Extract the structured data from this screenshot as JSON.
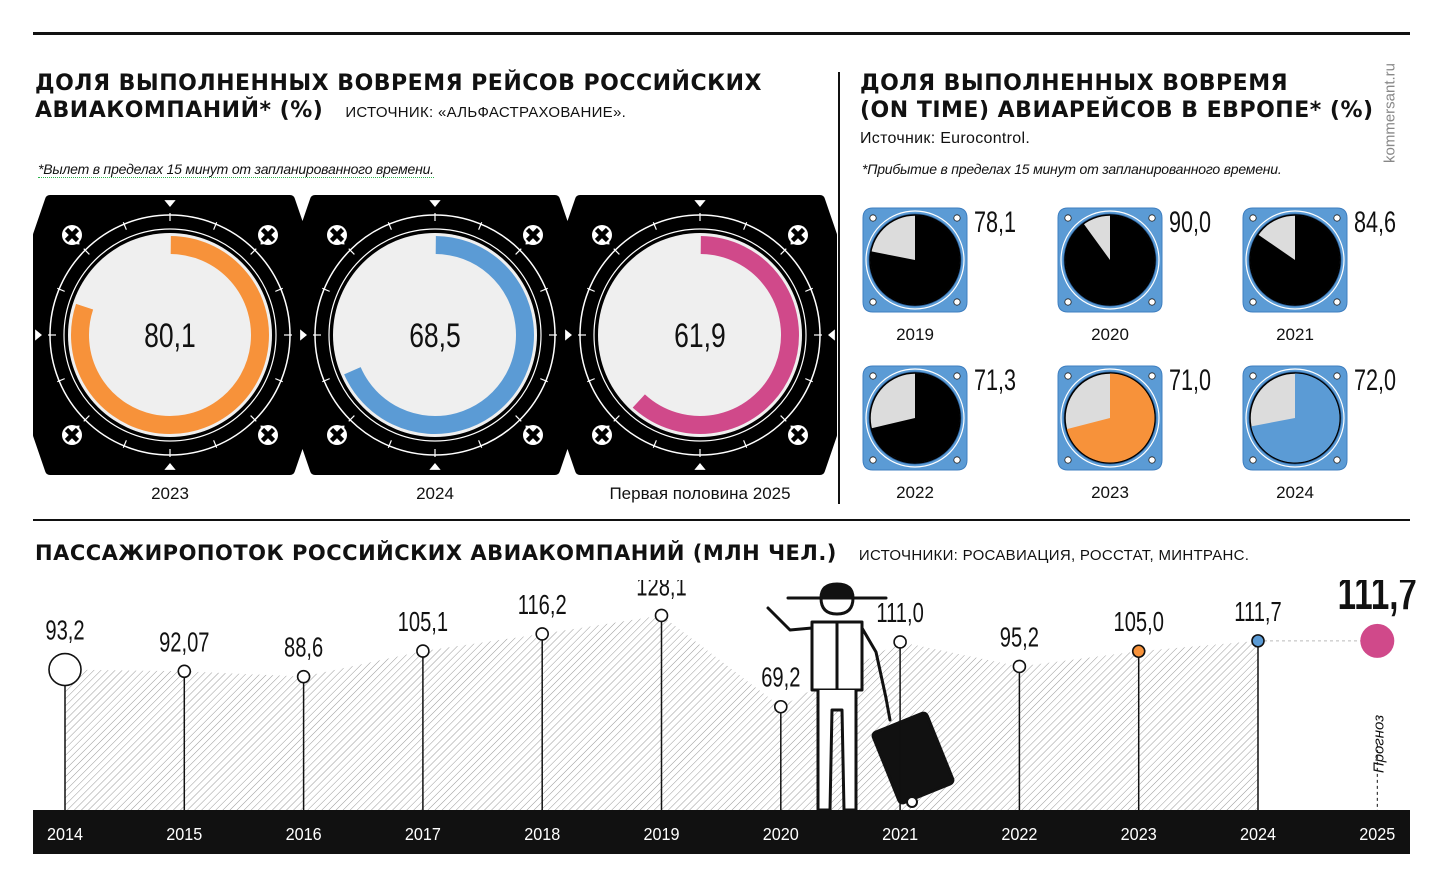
{
  "brand": "kommersant.ru",
  "russia": {
    "title_line1": "Доля выполненных вовремя рейсов российских",
    "title_line2": "авиакомпаний* (%)",
    "source": "Источник: «Альфастрахование».",
    "note": "*Вылет в пределах 15 минут от запланированного времени.",
    "gauges": [
      {
        "label": "2023",
        "value_text": "80,1",
        "value": 80.1,
        "color": "#f7923a"
      },
      {
        "label": "2024",
        "value_text": "68,5",
        "value": 68.5,
        "color": "#5b9bd5"
      },
      {
        "label": "Первая половина 2025",
        "value_text": "61,9",
        "value": 61.9,
        "color": "#d0498a"
      }
    ]
  },
  "europe": {
    "title_line1": "Доля выполненных вовремя",
    "title_line2": "(on time) авиарейсов в Европе* (%)",
    "source": "Источник: Eurocontrol.",
    "note": "*Прибытие в пределах 15 минут от запланированного времени.",
    "gauges": [
      {
        "label": "2019",
        "value_text": "78,1",
        "value": 78.1,
        "fill": "#000000"
      },
      {
        "label": "2020",
        "value_text": "90,0",
        "value": 90.0,
        "fill": "#000000"
      },
      {
        "label": "2021",
        "value_text": "84,6",
        "value": 84.6,
        "fill": "#000000"
      },
      {
        "label": "2022",
        "value_text": "71,3",
        "value": 71.3,
        "fill": "#000000"
      },
      {
        "label": "2023",
        "value_text": "71,0",
        "value": 71.0,
        "fill": "#f7923a"
      },
      {
        "label": "2024",
        "value_text": "72,0",
        "value": 72.0,
        "fill": "#5b9bd5"
      }
    ]
  },
  "passengers": {
    "title": "Пассажиропоток российских авиакомпаний (млн чел.)",
    "source": "Источники: Росавиация, Росстат, Минтранс.",
    "forecast_label": "Прогноз"
  },
  "chart_data": {
    "type": "area",
    "title": "Пассажиропоток российских авиакомпаний (млн чел.)",
    "categories": [
      "2014",
      "2015",
      "2016",
      "2017",
      "2018",
      "2019",
      "2020",
      "2021",
      "2022",
      "2023",
      "2024",
      "2025"
    ],
    "values": [
      93.2,
      92.07,
      88.6,
      105.1,
      116.2,
      128.1,
      69.2,
      111.0,
      95.2,
      105.0,
      111.7,
      111.7
    ],
    "labels": [
      "93,2",
      "92,07",
      "88,6",
      "105,1",
      "116,2",
      "128,1",
      "69,2",
      "111,0",
      "95,2",
      "105,0",
      "111,7",
      "111,7"
    ],
    "forecast": "2025",
    "highlight_colors": {
      "2023": "#f7923a",
      "2024": "#5b9bd5",
      "2025": "#d0498a"
    }
  }
}
